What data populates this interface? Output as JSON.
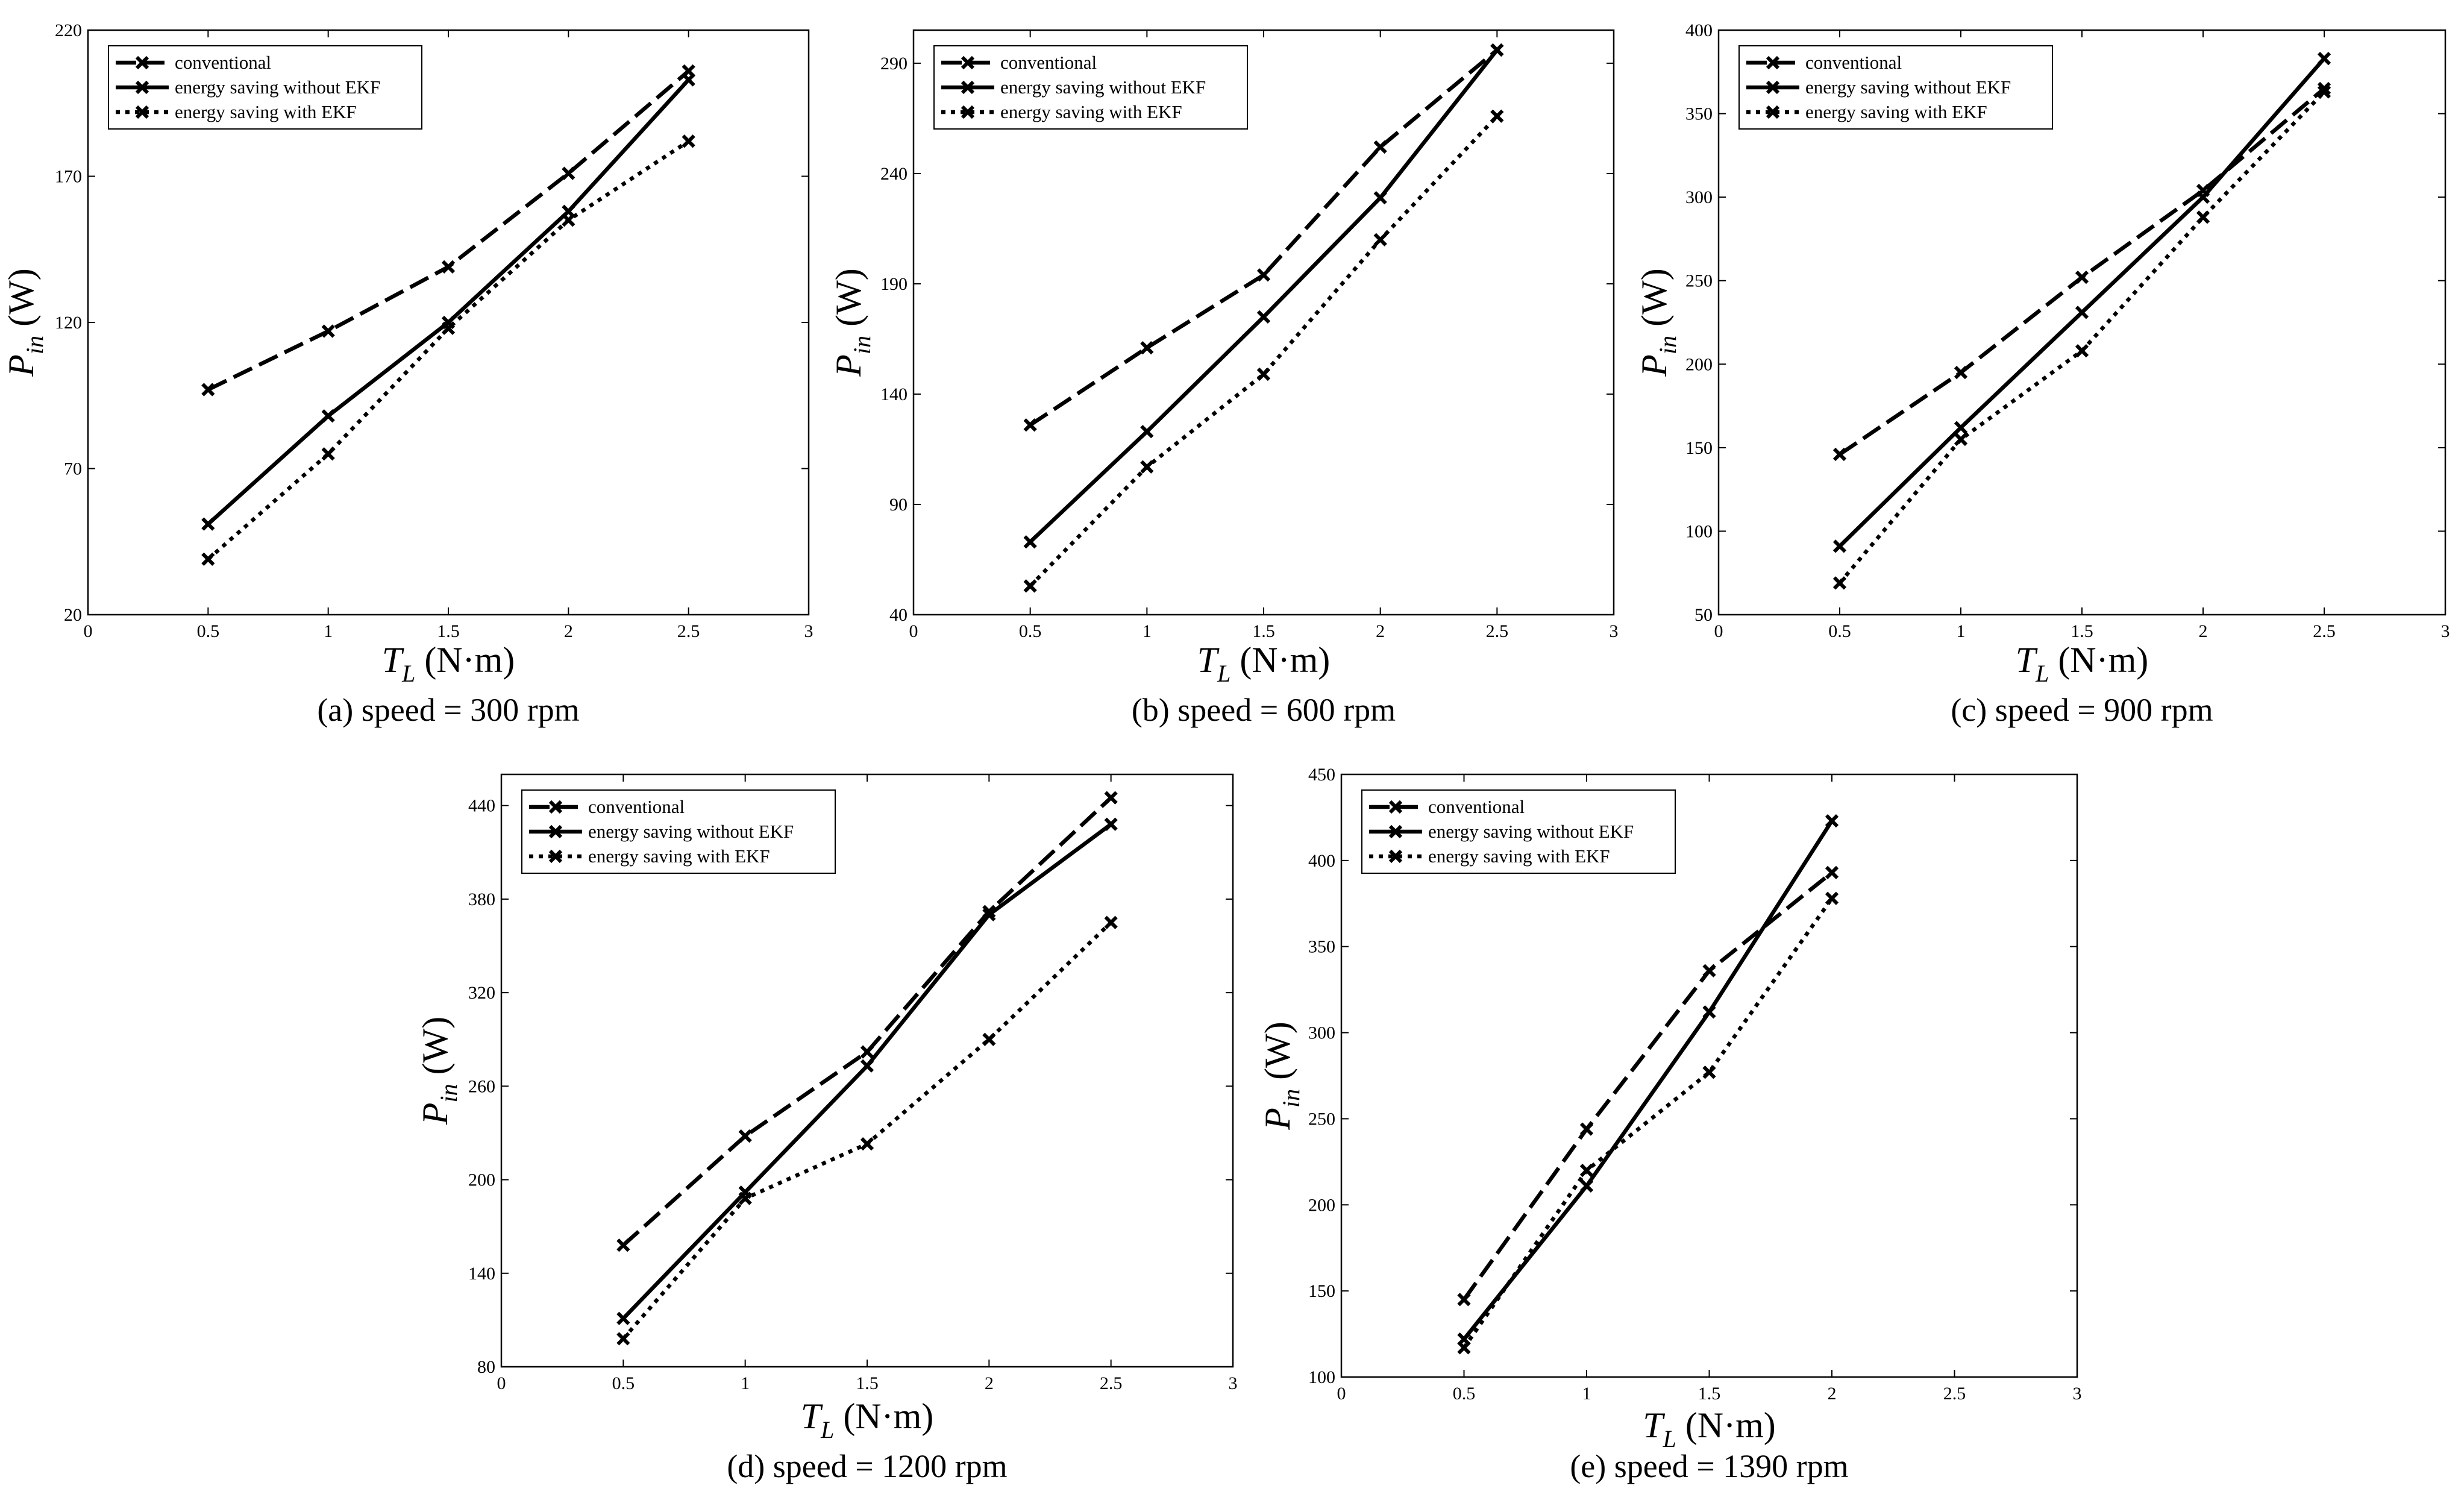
{
  "chart_data": [
    {
      "type": "line",
      "caption": "(a) speed = 300 rpm",
      "xlabel_var": "T",
      "xlabel_sub": "L",
      "xlabel_unit": " (N·m)",
      "ylabel_var": "P",
      "ylabel_sub": "in",
      "ylabel_unit": " (W)",
      "xlim": [
        0,
        3
      ],
      "ylim": [
        20,
        220
      ],
      "xticks": [
        0,
        0.5,
        1,
        1.5,
        2,
        2.5,
        3
      ],
      "yticks": [
        20,
        70,
        120,
        170,
        220
      ],
      "x": [
        0.5,
        1,
        1.5,
        2,
        2.5
      ],
      "legend_position": "top-left",
      "series": [
        {
          "name": "conventional",
          "style": "dashed",
          "values": [
            97,
            117,
            139,
            171,
            206
          ]
        },
        {
          "name": "energy saving without EKF",
          "style": "solid",
          "values": [
            51,
            88,
            120,
            158,
            203
          ]
        },
        {
          "name": "energy saving with EKF",
          "style": "dotted",
          "values": [
            39,
            75,
            118,
            155,
            182
          ]
        }
      ]
    },
    {
      "type": "line",
      "caption": "(b) speed = 600 rpm",
      "xlabel_var": "T",
      "xlabel_sub": "L",
      "xlabel_unit": " (N·m)",
      "ylabel_var": "P",
      "ylabel_sub": "in",
      "ylabel_unit": " (W)",
      "xlim": [
        0,
        3
      ],
      "ylim": [
        40,
        305
      ],
      "xticks": [
        0,
        0.5,
        1,
        1.5,
        2,
        2.5,
        3
      ],
      "yticks": [
        40,
        90,
        140,
        190,
        240,
        290
      ],
      "x": [
        0.5,
        1,
        1.5,
        2,
        2.5
      ],
      "legend_position": "top-left",
      "series": [
        {
          "name": "conventional",
          "style": "dashed",
          "values": [
            126,
            161,
            194,
            252,
            296
          ]
        },
        {
          "name": "energy saving without EKF",
          "style": "solid",
          "values": [
            73,
            123,
            175,
            229,
            296
          ]
        },
        {
          "name": "energy saving with EKF",
          "style": "dotted",
          "values": [
            53,
            107,
            149,
            210,
            266
          ]
        }
      ]
    },
    {
      "type": "line",
      "caption": "(c) speed = 900 rpm",
      "xlabel_var": "T",
      "xlabel_sub": "L",
      "xlabel_unit": " (N·m)",
      "ylabel_var": "P",
      "ylabel_sub": "in",
      "ylabel_unit": " (W)",
      "xlim": [
        0,
        3
      ],
      "ylim": [
        50,
        400
      ],
      "xticks": [
        0,
        0.5,
        1,
        1.5,
        2,
        2.5,
        3
      ],
      "yticks": [
        50,
        100,
        150,
        200,
        250,
        300,
        350,
        400
      ],
      "x": [
        0.5,
        1,
        1.5,
        2,
        2.5
      ],
      "legend_position": "top-left",
      "series": [
        {
          "name": "conventional",
          "style": "dashed",
          "values": [
            146,
            195,
            252,
            304,
            365
          ]
        },
        {
          "name": "energy saving without EKF",
          "style": "solid",
          "values": [
            91,
            162,
            231,
            300,
            383
          ]
        },
        {
          "name": "energy saving with EKF",
          "style": "dotted",
          "values": [
            69,
            155,
            208,
            288,
            363
          ]
        }
      ]
    },
    {
      "type": "line",
      "caption": "(d) speed = 1200 rpm",
      "xlabel_var": "T",
      "xlabel_sub": "L",
      "xlabel_unit": " (N·m)",
      "ylabel_var": "P",
      "ylabel_sub": "in",
      "ylabel_unit": " (W)",
      "xlim": [
        0,
        3
      ],
      "ylim": [
        80,
        460
      ],
      "xticks": [
        0,
        0.5,
        1,
        1.5,
        2,
        2.5,
        3
      ],
      "yticks": [
        80,
        140,
        200,
        260,
        320,
        380,
        440
      ],
      "x": [
        0.5,
        1,
        1.5,
        2,
        2.5
      ],
      "legend_position": "top-left",
      "series": [
        {
          "name": "conventional",
          "style": "dashed",
          "values": [
            158,
            228,
            282,
            372,
            445
          ]
        },
        {
          "name": "energy saving without EKF",
          "style": "solid",
          "values": [
            111,
            192,
            273,
            370,
            428
          ]
        },
        {
          "name": "energy saving with EKF",
          "style": "dotted",
          "values": [
            98,
            188,
            223,
            290,
            365
          ]
        }
      ]
    },
    {
      "type": "line",
      "caption": "(e) speed = 1390 rpm",
      "xlabel_var": "T",
      "xlabel_sub": "L",
      "xlabel_unit": " (N·m)",
      "ylabel_var": "P",
      "ylabel_sub": "in",
      "ylabel_unit": " (W)",
      "xlim": [
        0,
        3
      ],
      "ylim": [
        100,
        450
      ],
      "xticks": [
        0,
        0.5,
        1,
        1.5,
        2,
        2.5,
        3
      ],
      "yticks": [
        100,
        150,
        200,
        250,
        300,
        350,
        400,
        450
      ],
      "x": [
        0.5,
        1,
        1.5,
        2
      ],
      "legend_position": "top-left",
      "series": [
        {
          "name": "conventional",
          "style": "dashed",
          "values": [
            145,
            244,
            336,
            393
          ]
        },
        {
          "name": "energy saving without EKF",
          "style": "solid",
          "values": [
            122,
            211,
            312,
            423
          ]
        },
        {
          "name": "energy saving with EKF",
          "style": "dotted",
          "values": [
            117,
            220,
            277,
            378
          ]
        }
      ]
    }
  ]
}
